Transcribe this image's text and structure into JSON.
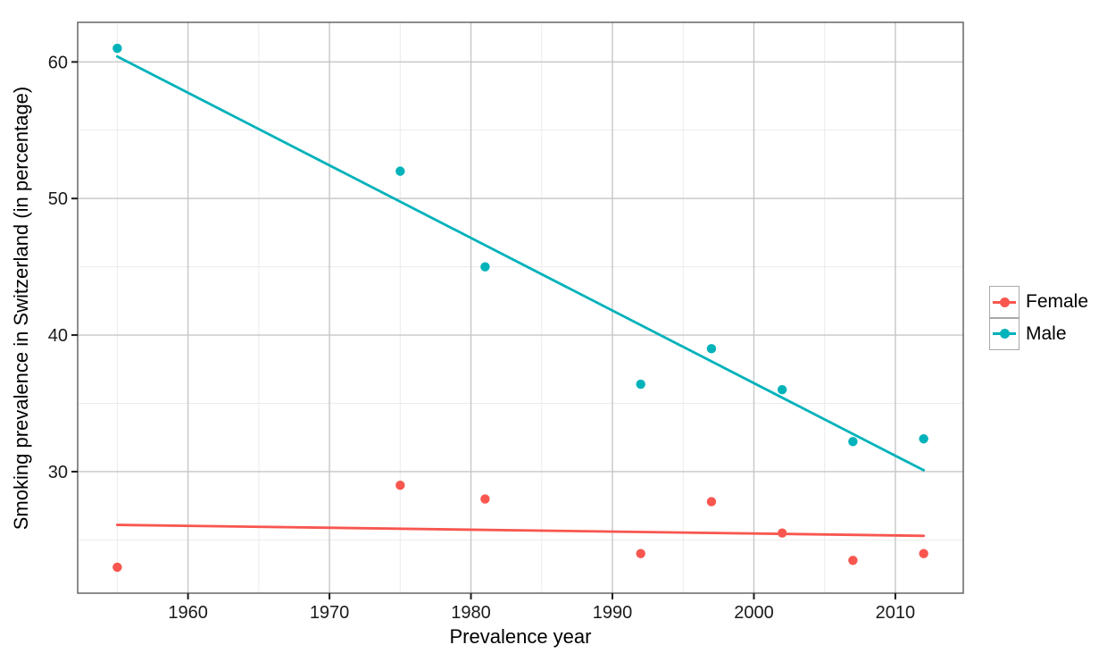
{
  "figure": {
    "background": "#ffffff",
    "text_color": "#1a1a1a"
  },
  "chart_data": {
    "type": "scatter",
    "title": "",
    "xlabel": "Prevalence year",
    "ylabel": "Smoking prevalence in Switzerland (in percentage)",
    "x_domain": [
      1952.2,
      2014.8
    ],
    "y_domain": [
      21.1,
      62.9
    ],
    "x_ticks": [
      1960,
      1970,
      1980,
      1990,
      2000,
      2010
    ],
    "x_minor_ticks": [
      1955,
      1965,
      1975,
      1985,
      1995,
      2005
    ],
    "y_ticks": [
      30,
      40,
      50,
      60
    ],
    "y_minor_ticks": [
      25,
      35,
      45,
      55
    ],
    "x": [
      1955,
      1975,
      1981,
      1992,
      1997,
      2002,
      2007,
      2012
    ],
    "series": [
      {
        "name": "Female",
        "color": "#f8564f",
        "values": [
          23,
          29,
          28,
          24,
          27.8,
          25.5,
          23.5,
          24
        ],
        "trend": {
          "x": [
            1955,
            2012
          ],
          "y": [
            26.1,
            25.3
          ]
        }
      },
      {
        "name": "Male",
        "color": "#00b2ba",
        "values": [
          61,
          52,
          45,
          36.4,
          39,
          36,
          32.2,
          32.4
        ],
        "trend": {
          "x": [
            1955,
            2012
          ],
          "y": [
            60.4,
            30.1
          ]
        }
      }
    ],
    "legend_position": "right",
    "grid": {
      "major_color": "#c6c6c6",
      "minor_color": "#ebebeb",
      "major_width": 1.4,
      "minor_width": 1
    },
    "panel_border_color": "#4f4f4f",
    "tick_color": "#1a1a1a",
    "tick_label_color": "#1a1a1a",
    "point_radius": 5.2,
    "trend_line_width": 2.8
  }
}
